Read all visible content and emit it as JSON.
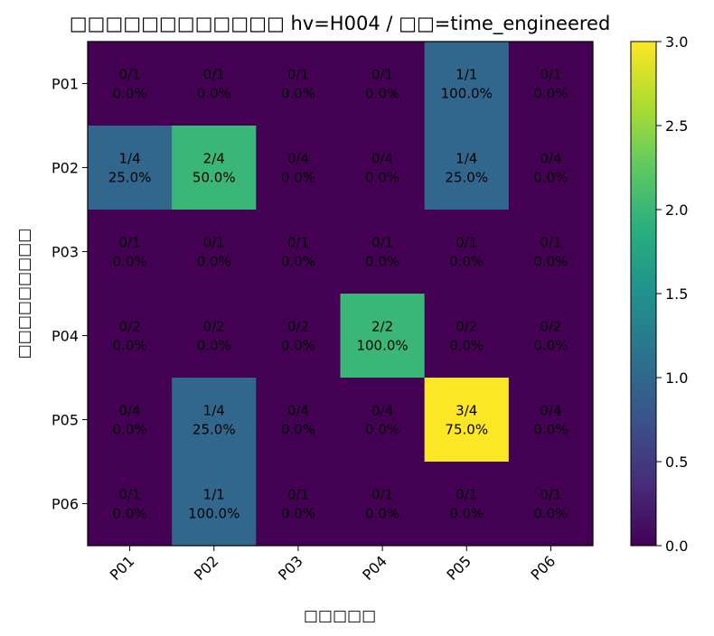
{
  "chart_data": {
    "type": "heatmap",
    "title": "□□□□□□□□□□□□ hv=H004 / □□=time_engineered",
    "xlabel": "□□□□□",
    "ylabel": "□□□□□□□□□",
    "x_categories": [
      "P01",
      "P02",
      "P03",
      "P04",
      "P05",
      "P06"
    ],
    "y_categories": [
      "P01",
      "P02",
      "P03",
      "P04",
      "P05",
      "P06"
    ],
    "counts": [
      [
        0,
        0,
        0,
        0,
        1,
        0
      ],
      [
        1,
        2,
        0,
        0,
        1,
        0
      ],
      [
        0,
        0,
        0,
        0,
        0,
        0
      ],
      [
        0,
        0,
        0,
        2,
        0,
        0
      ],
      [
        0,
        1,
        0,
        0,
        3,
        0
      ],
      [
        0,
        1,
        0,
        0,
        0,
        0
      ]
    ],
    "row_totals": [
      1,
      4,
      1,
      2,
      4,
      1
    ],
    "cell_labels": [
      [
        [
          "0/1",
          "0.0%"
        ],
        [
          "0/1",
          "0.0%"
        ],
        [
          "0/1",
          "0.0%"
        ],
        [
          "0/1",
          "0.0%"
        ],
        [
          "1/1",
          "100.0%"
        ],
        [
          "0/1",
          "0.0%"
        ]
      ],
      [
        [
          "1/4",
          "25.0%"
        ],
        [
          "2/4",
          "50.0%"
        ],
        [
          "0/4",
          "0.0%"
        ],
        [
          "0/4",
          "0.0%"
        ],
        [
          "1/4",
          "25.0%"
        ],
        [
          "0/4",
          "0.0%"
        ]
      ],
      [
        [
          "0/1",
          "0.0%"
        ],
        [
          "0/1",
          "0.0%"
        ],
        [
          "0/1",
          "0.0%"
        ],
        [
          "0/1",
          "0.0%"
        ],
        [
          "0/1",
          "0.0%"
        ],
        [
          "0/1",
          "0.0%"
        ]
      ],
      [
        [
          "0/2",
          "0.0%"
        ],
        [
          "0/2",
          "0.0%"
        ],
        [
          "0/2",
          "0.0%"
        ],
        [
          "2/2",
          "100.0%"
        ],
        [
          "0/2",
          "0.0%"
        ],
        [
          "0/2",
          "0.0%"
        ]
      ],
      [
        [
          "0/4",
          "0.0%"
        ],
        [
          "1/4",
          "25.0%"
        ],
        [
          "0/4",
          "0.0%"
        ],
        [
          "0/4",
          "0.0%"
        ],
        [
          "3/4",
          "75.0%"
        ],
        [
          "0/4",
          "0.0%"
        ]
      ],
      [
        [
          "0/1",
          "0.0%"
        ],
        [
          "1/1",
          "100.0%"
        ],
        [
          "0/1",
          "0.0%"
        ],
        [
          "0/1",
          "0.0%"
        ],
        [
          "0/1",
          "0.0%"
        ],
        [
          "0/1",
          "0.0%"
        ]
      ]
    ],
    "colormap": "viridis",
    "vmin": 0,
    "vmax": 3,
    "colorbar_ticks": [
      "0.0",
      "0.5",
      "1.0",
      "1.5",
      "2.0",
      "2.5",
      "3.0"
    ],
    "colors": {
      "low": "#440154",
      "one": "#31688e",
      "two": "#35b779",
      "high": "#fde725"
    }
  }
}
